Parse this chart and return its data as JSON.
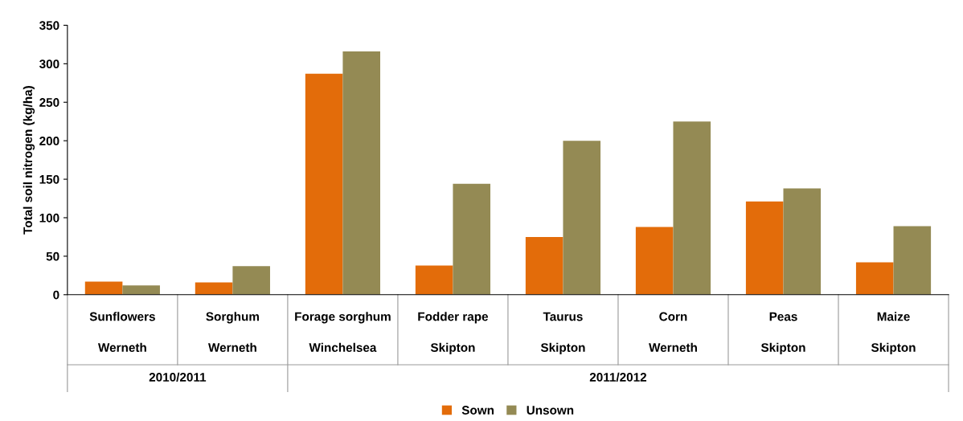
{
  "chart_data": {
    "type": "bar",
    "ylabel": "Total soil nitrogen (kg/ha)",
    "categories": [
      "Sunflowers\nWerneth",
      "Sorghum\nWerneth",
      "Forage sorghum\nWinchelsea",
      "Fodder rape\nSkipton",
      "Taurus\nSkipton",
      "Corn\nWerneth",
      "Peas\nSkipton",
      "Maize\nSkipton"
    ],
    "series": [
      {
        "name": "Sown",
        "color": "#e36c0a",
        "values": [
          17,
          16,
          287,
          38,
          75,
          88,
          121,
          42
        ]
      },
      {
        "name": "Unsown",
        "color": "#948a54",
        "values": [
          12,
          37,
          316,
          144,
          200,
          225,
          138,
          89
        ]
      }
    ],
    "annotations": [
      "2010/2011",
      "2011/2012"
    ],
    "ylim": [
      0,
      350
    ],
    "yticks": [
      0,
      50,
      100,
      150,
      200,
      250,
      300,
      350
    ],
    "grid": false,
    "legend": "bottom"
  }
}
